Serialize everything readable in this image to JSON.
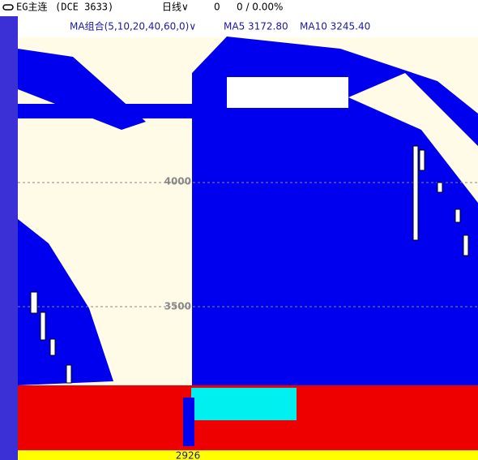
{
  "header": {
    "symbol": "EG主连",
    "exchange": "(DCE 3633)",
    "period": "日线∨",
    "change": "0",
    "change_pct": "0 / 0.00%"
  },
  "indicator": {
    "name": "MA组合(5,10,20,40,60,0)∨",
    "ma5": "MA5 3172.80",
    "ma10": "MA10 3245.40"
  },
  "price_axis": {
    "labels": [
      "4000",
      "3500"
    ]
  },
  "bottom": {
    "low_label": "2926"
  }
}
